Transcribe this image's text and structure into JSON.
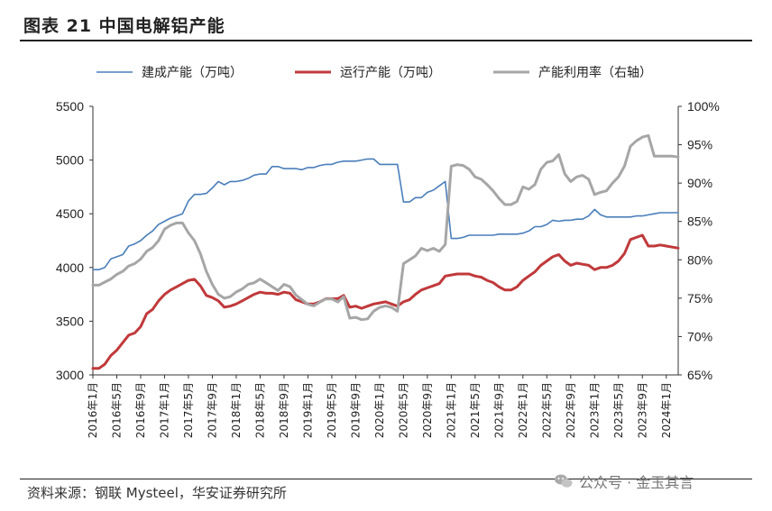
{
  "header": {
    "title": "图表 21  中国电解铝产能"
  },
  "footer": {
    "source": "资料来源：钢联 Mysteel，华安证券研究所",
    "watermark": "公众号 · 金玉其言"
  },
  "colors": {
    "built": "#4a7eba",
    "running": "#c0393b",
    "utilization": "#a6a6a6"
  },
  "chart_data": {
    "type": "line",
    "title": "中国电解铝产能",
    "legend_position": "top",
    "y_left": {
      "ylim": [
        3000,
        5500
      ],
      "ticks": [
        "3000",
        "3500",
        "4000",
        "4500",
        "5000",
        "5500"
      ]
    },
    "y_right": {
      "ylim": [
        0.65,
        1.0
      ],
      "ticks": [
        "65%",
        "70%",
        "75%",
        "80%",
        "85%",
        "90%",
        "95%",
        "100%"
      ]
    },
    "x_tick_labels": [
      "2016年1月",
      "2016年5月",
      "2016年9月",
      "2017年1月",
      "2017年5月",
      "2017年9月",
      "2018年1月",
      "2018年5月",
      "2018年9月",
      "2019年1月",
      "2019年5月",
      "2019年9月",
      "2020年1月",
      "2020年5月",
      "2020年9月",
      "2021年1月",
      "2021年5月",
      "2021年9月",
      "2022年1月",
      "2022年5月",
      "2022年9月",
      "2023年1月",
      "2023年5月",
      "2023年9月",
      "2024年1月"
    ],
    "x_start": "2016年1月",
    "series": [
      {
        "name": "建成产能（万吨）",
        "axis": "left",
        "values": [
          3980,
          3980,
          4000,
          4080,
          4100,
          4120,
          4200,
          4220,
          4250,
          4300,
          4340,
          4400,
          4430,
          4460,
          4480,
          4500,
          4620,
          4680,
          4680,
          4690,
          4740,
          4800,
          4770,
          4800,
          4800,
          4810,
          4830,
          4860,
          4870,
          4870,
          4940,
          4940,
          4920,
          4920,
          4920,
          4910,
          4930,
          4930,
          4950,
          4960,
          4960,
          4980,
          4990,
          4990,
          4990,
          5000,
          5010,
          5010,
          4960,
          4960,
          4960,
          4960,
          4610,
          4610,
          4650,
          4650,
          4700,
          4720,
          4760,
          4800,
          4270,
          4270,
          4280,
          4300,
          4300,
          4300,
          4300,
          4300,
          4310,
          4310,
          4310,
          4310,
          4320,
          4340,
          4380,
          4380,
          4400,
          4440,
          4430,
          4440,
          4440,
          4450,
          4450,
          4480,
          4540,
          4490,
          4470,
          4470,
          4470,
          4470,
          4470,
          4480,
          4480,
          4490,
          4500,
          4510,
          4510,
          4510,
          4510
        ]
      },
      {
        "name": "运行产能（万吨）",
        "axis": "left",
        "values": [
          3060,
          3060,
          3100,
          3180,
          3230,
          3300,
          3370,
          3390,
          3450,
          3570,
          3610,
          3690,
          3750,
          3790,
          3820,
          3850,
          3880,
          3890,
          3830,
          3740,
          3720,
          3690,
          3630,
          3640,
          3660,
          3690,
          3720,
          3750,
          3770,
          3760,
          3760,
          3750,
          3770,
          3760,
          3700,
          3680,
          3660,
          3660,
          3680,
          3710,
          3710,
          3710,
          3740,
          3630,
          3640,
          3620,
          3640,
          3660,
          3670,
          3680,
          3660,
          3640,
          3680,
          3700,
          3750,
          3790,
          3810,
          3830,
          3850,
          3920,
          3930,
          3940,
          3940,
          3940,
          3920,
          3910,
          3880,
          3860,
          3820,
          3790,
          3790,
          3820,
          3880,
          3920,
          3960,
          4020,
          4060,
          4100,
          4120,
          4060,
          4020,
          4040,
          4030,
          4020,
          3980,
          4000,
          4000,
          4020,
          4060,
          4130,
          4260,
          4280,
          4300,
          4200,
          4200,
          4210,
          4200,
          4190,
          4180
        ]
      },
      {
        "name": "产能利用率（右轴）",
        "axis": "right",
        "values": [
          0.767,
          0.767,
          0.771,
          0.775,
          0.781,
          0.785,
          0.792,
          0.795,
          0.801,
          0.811,
          0.816,
          0.825,
          0.84,
          0.845,
          0.848,
          0.848,
          0.835,
          0.825,
          0.808,
          0.785,
          0.768,
          0.755,
          0.75,
          0.752,
          0.758,
          0.762,
          0.768,
          0.77,
          0.775,
          0.77,
          0.765,
          0.76,
          0.768,
          0.765,
          0.754,
          0.748,
          0.742,
          0.74,
          0.745,
          0.749,
          0.749,
          0.745,
          0.752,
          0.724,
          0.725,
          0.722,
          0.723,
          0.733,
          0.738,
          0.74,
          0.738,
          0.733,
          0.795,
          0.8,
          0.805,
          0.815,
          0.812,
          0.815,
          0.811,
          0.82,
          0.922,
          0.924,
          0.923,
          0.918,
          0.908,
          0.905,
          0.898,
          0.89,
          0.88,
          0.872,
          0.872,
          0.876,
          0.895,
          0.892,
          0.898,
          0.918,
          0.927,
          0.929,
          0.937,
          0.912,
          0.902,
          0.908,
          0.91,
          0.905,
          0.885,
          0.888,
          0.89,
          0.9,
          0.908,
          0.922,
          0.948,
          0.955,
          0.96,
          0.962,
          0.935,
          0.935,
          0.935,
          0.935,
          0.934
        ]
      }
    ]
  }
}
